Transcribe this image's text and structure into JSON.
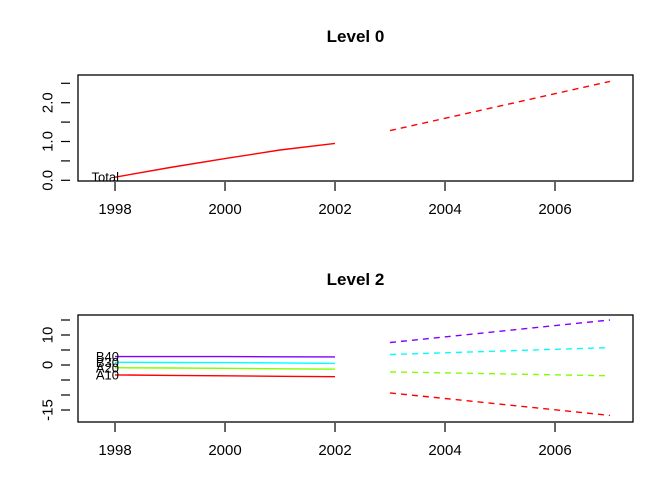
{
  "figure": {
    "background": "#ffffff",
    "axis_color": "#000000",
    "panel_titles": [
      "Level 0",
      "Level 2"
    ]
  },
  "chart_data": [
    {
      "type": "line",
      "title": "Level 0",
      "xlabel": "",
      "ylabel": "",
      "xlim": [
        1997.327,
        2007.418
      ],
      "ylim": [
        -0.018,
        2.714
      ],
      "x_ticks": [
        {
          "value": 1998,
          "label": "1998"
        },
        {
          "value": 2000,
          "label": "2000"
        },
        {
          "value": 2002,
          "label": "2002"
        },
        {
          "value": 2004,
          "label": "2004"
        },
        {
          "value": 2006,
          "label": "2006"
        }
      ],
      "y_ticks": [
        {
          "value": 0.0,
          "label": "0.0"
        },
        {
          "value": 0.5,
          "label": ""
        },
        {
          "value": 1.0,
          "label": "1.0"
        },
        {
          "value": 1.5,
          "label": ""
        },
        {
          "value": 2.0,
          "label": "2.0"
        },
        {
          "value": 2.5,
          "label": ""
        }
      ],
      "grid": false,
      "legend_position": "inline-left-labels",
      "series": [
        {
          "name": "Total",
          "label": "Total",
          "color": "#FF0000",
          "history": {
            "x": [
              1998,
              1999,
              2000,
              2001,
              2002
            ],
            "y": [
              0.08,
              0.33,
              0.56,
              0.78,
              0.95
            ],
            "style": "solid"
          },
          "forecast": {
            "x": [
              2003,
              2007
            ],
            "y": [
              1.28,
              2.55
            ],
            "style": "dashed"
          }
        }
      ]
    },
    {
      "type": "line",
      "title": "Level 2",
      "xlabel": "",
      "ylabel": "",
      "xlim": [
        1997.327,
        2007.418
      ],
      "ylim": [
        -19,
        16.667
      ],
      "x_ticks": [
        {
          "value": 1998,
          "label": "1998"
        },
        {
          "value": 2000,
          "label": "2000"
        },
        {
          "value": 2002,
          "label": "2002"
        },
        {
          "value": 2004,
          "label": "2004"
        },
        {
          "value": 2006,
          "label": "2006"
        }
      ],
      "y_ticks": [
        {
          "value": 15,
          "label": ""
        },
        {
          "value": 10,
          "label": "10"
        },
        {
          "value": 5,
          "label": ""
        },
        {
          "value": 0,
          "label": "0"
        },
        {
          "value": -5,
          "label": ""
        },
        {
          "value": -10,
          "label": ""
        },
        {
          "value": -15,
          "label": "-15"
        }
      ],
      "grid": false,
      "legend_position": "inline-left-labels",
      "series": [
        {
          "name": "A10",
          "label": "A10",
          "color": "#FF0000",
          "history": {
            "x": [
              1998,
              1999,
              2000,
              2001,
              2002
            ],
            "y": [
              -3.3,
              -3.45,
              -3.6,
              -3.75,
              -3.9
            ],
            "style": "solid"
          },
          "forecast": {
            "x": [
              2003,
              2007
            ],
            "y": [
              -9.3,
              -16.8
            ],
            "style": "dashed"
          }
        },
        {
          "name": "A20",
          "label": "A20",
          "color": "#80FF00",
          "history": {
            "x": [
              1998,
              1999,
              2000,
              2001,
              2002
            ],
            "y": [
              -0.9,
              -1.0,
              -1.1,
              -1.25,
              -1.4
            ],
            "style": "solid"
          },
          "forecast": {
            "x": [
              2003,
              2007
            ],
            "y": [
              -2.3,
              -3.6
            ],
            "style": "dashed"
          }
        },
        {
          "name": "B30",
          "label": "B30",
          "color": "#00FFFF",
          "history": {
            "x": [
              1998,
              1999,
              2000,
              2001,
              2002
            ],
            "y": [
              0.9,
              0.85,
              0.8,
              0.7,
              0.55
            ],
            "style": "solid"
          },
          "forecast": {
            "x": [
              2003,
              2007
            ],
            "y": [
              3.5,
              5.8
            ],
            "style": "dashed"
          }
        },
        {
          "name": "B40",
          "label": "B40",
          "color": "#8000FF",
          "history": {
            "x": [
              1998,
              1999,
              2000,
              2001,
              2002
            ],
            "y": [
              2.8,
              2.8,
              2.8,
              2.75,
              2.7
            ],
            "style": "solid"
          },
          "forecast": {
            "x": [
              2003,
              2007
            ],
            "y": [
              7.5,
              15.0
            ],
            "style": "dashed"
          }
        }
      ]
    }
  ]
}
